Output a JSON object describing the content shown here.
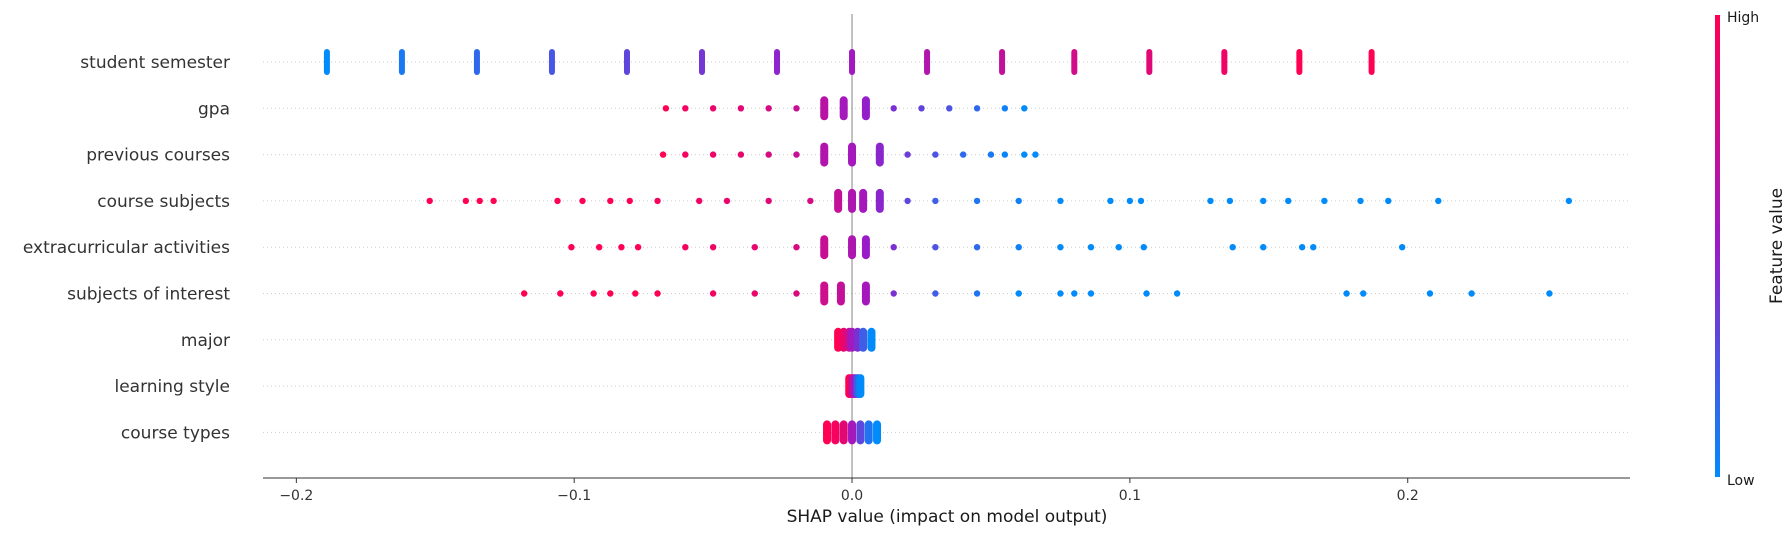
{
  "chart_data": {
    "type": "scatter",
    "title": "",
    "xlabel": "SHAP value (impact on model output)",
    "xlim": [
      -0.212,
      0.28
    ],
    "x_ticks": [
      -0.2,
      -0.1,
      0.0,
      0.1,
      0.2
    ],
    "x_tick_labels": [
      "−0.2",
      "−0.1",
      "0.0",
      "0.1",
      "0.2"
    ],
    "features": [
      "student semester",
      "gpa",
      "previous courses",
      "course subjects",
      "extracurricular activities",
      "subjects of interest",
      "major",
      "learning style",
      "course types"
    ],
    "colorbar": {
      "title": "Feature value",
      "high_label": "High",
      "low_label": "Low"
    },
    "colors": {
      "low": "#008bfb",
      "high": "#ff0052",
      "mid": "#9a1bc8",
      "axis": "#333333",
      "zero_line": "#999999",
      "row_line": "#cccccc"
    },
    "grid": false,
    "series": [
      {
        "feature": "student semester",
        "points": [
          [
            -0.189,
            0.0
          ],
          [
            -0.162,
            0.08
          ],
          [
            -0.135,
            0.15
          ],
          [
            -0.108,
            0.23
          ],
          [
            -0.081,
            0.31
          ],
          [
            -0.054,
            0.38
          ],
          [
            -0.027,
            0.46
          ],
          [
            0.0,
            0.54
          ],
          [
            0.027,
            0.62
          ],
          [
            0.054,
            0.69
          ],
          [
            0.08,
            0.77
          ],
          [
            0.107,
            0.85
          ],
          [
            0.134,
            0.92
          ],
          [
            0.161,
            1.0
          ],
          [
            0.187,
            1.0
          ]
        ]
      },
      {
        "feature": "gpa",
        "points": [
          [
            -0.067,
            1.0
          ],
          [
            -0.06,
            0.95
          ],
          [
            -0.05,
            0.9
          ],
          [
            -0.04,
            0.85
          ],
          [
            -0.03,
            0.8
          ],
          [
            -0.02,
            0.72
          ],
          [
            -0.01,
            0.65
          ],
          [
            -0.003,
            0.55
          ],
          [
            0.005,
            0.48
          ],
          [
            0.015,
            0.4
          ],
          [
            0.025,
            0.32
          ],
          [
            0.035,
            0.25
          ],
          [
            0.045,
            0.15
          ],
          [
            0.055,
            0.05
          ],
          [
            0.062,
            0.0
          ]
        ]
      },
      {
        "feature": "previous courses",
        "points": [
          [
            -0.068,
            1.0
          ],
          [
            -0.06,
            0.95
          ],
          [
            -0.05,
            0.92
          ],
          [
            -0.04,
            0.88
          ],
          [
            -0.03,
            0.8
          ],
          [
            -0.02,
            0.72
          ],
          [
            -0.01,
            0.62
          ],
          [
            0.0,
            0.55
          ],
          [
            0.01,
            0.45
          ],
          [
            0.02,
            0.35
          ],
          [
            0.03,
            0.25
          ],
          [
            0.04,
            0.15
          ],
          [
            0.05,
            0.08
          ],
          [
            0.055,
            0.03
          ],
          [
            0.062,
            0.0
          ],
          [
            0.066,
            0.0
          ]
        ]
      },
      {
        "feature": "course subjects",
        "points": [
          [
            -0.152,
            1.0
          ],
          [
            -0.139,
            1.0
          ],
          [
            -0.134,
            1.0
          ],
          [
            -0.129,
            1.0
          ],
          [
            -0.106,
            1.0
          ],
          [
            -0.097,
            1.0
          ],
          [
            -0.087,
            1.0
          ],
          [
            -0.08,
            1.0
          ],
          [
            -0.07,
            0.95
          ],
          [
            -0.055,
            0.92
          ],
          [
            -0.045,
            0.9
          ],
          [
            -0.03,
            0.85
          ],
          [
            -0.015,
            0.8
          ],
          [
            -0.005,
            0.7
          ],
          [
            0.0,
            0.6
          ],
          [
            0.004,
            0.55
          ],
          [
            0.01,
            0.45
          ],
          [
            0.02,
            0.3
          ],
          [
            0.03,
            0.2
          ],
          [
            0.045,
            0.1
          ],
          [
            0.06,
            0.05
          ],
          [
            0.075,
            0.0
          ],
          [
            0.093,
            0.0
          ],
          [
            0.1,
            0.0
          ],
          [
            0.104,
            0.0
          ],
          [
            0.129,
            0.0
          ],
          [
            0.136,
            0.0
          ],
          [
            0.148,
            0.0
          ],
          [
            0.157,
            0.0
          ],
          [
            0.17,
            0.0
          ],
          [
            0.183,
            0.0
          ],
          [
            0.193,
            0.0
          ],
          [
            0.211,
            0.0
          ],
          [
            0.258,
            0.0
          ]
        ]
      },
      {
        "feature": "extracurricular activities",
        "points": [
          [
            -0.101,
            1.0
          ],
          [
            -0.091,
            1.0
          ],
          [
            -0.083,
            1.0
          ],
          [
            -0.077,
            1.0
          ],
          [
            -0.06,
            0.95
          ],
          [
            -0.05,
            0.92
          ],
          [
            -0.035,
            0.88
          ],
          [
            -0.02,
            0.8
          ],
          [
            -0.01,
            0.72
          ],
          [
            0.0,
            0.6
          ],
          [
            0.005,
            0.5
          ],
          [
            0.015,
            0.4
          ],
          [
            0.03,
            0.25
          ],
          [
            0.045,
            0.15
          ],
          [
            0.06,
            0.05
          ],
          [
            0.075,
            0.0
          ],
          [
            0.086,
            0.0
          ],
          [
            0.096,
            0.0
          ],
          [
            0.105,
            0.0
          ],
          [
            0.137,
            0.0
          ],
          [
            0.148,
            0.0
          ],
          [
            0.162,
            0.0
          ],
          [
            0.166,
            0.0
          ],
          [
            0.198,
            0.0
          ]
        ]
      },
      {
        "feature": "subjects of interest",
        "points": [
          [
            -0.118,
            1.0
          ],
          [
            -0.105,
            1.0
          ],
          [
            -0.093,
            1.0
          ],
          [
            -0.087,
            1.0
          ],
          [
            -0.078,
            1.0
          ],
          [
            -0.07,
            1.0
          ],
          [
            -0.05,
            0.95
          ],
          [
            -0.035,
            0.9
          ],
          [
            -0.02,
            0.82
          ],
          [
            -0.01,
            0.75
          ],
          [
            -0.004,
            0.7
          ],
          [
            0.005,
            0.55
          ],
          [
            0.015,
            0.4
          ],
          [
            0.03,
            0.2
          ],
          [
            0.045,
            0.1
          ],
          [
            0.06,
            0.0
          ],
          [
            0.075,
            0.0
          ],
          [
            0.08,
            0.0
          ],
          [
            0.086,
            0.0
          ],
          [
            0.106,
            0.0
          ],
          [
            0.117,
            0.0
          ],
          [
            0.178,
            0.0
          ],
          [
            0.184,
            0.0
          ],
          [
            0.208,
            0.0
          ],
          [
            0.223,
            0.0
          ],
          [
            0.251,
            0.0
          ]
        ]
      },
      {
        "feature": "major",
        "points": [
          [
            -0.005,
            1.0
          ],
          [
            -0.003,
            0.9
          ],
          [
            -0.001,
            0.7
          ],
          [
            0.0,
            0.55
          ],
          [
            0.002,
            0.4
          ],
          [
            0.004,
            0.2
          ],
          [
            0.007,
            0.0
          ]
        ]
      },
      {
        "feature": "learning style",
        "points": [
          [
            -0.001,
            1.0
          ],
          [
            0.0,
            0.8
          ],
          [
            0.001,
            0.5
          ],
          [
            0.002,
            0.2
          ],
          [
            0.003,
            0.0
          ]
        ]
      },
      {
        "feature": "course types",
        "points": [
          [
            -0.009,
            1.0
          ],
          [
            -0.006,
            0.95
          ],
          [
            -0.003,
            0.85
          ],
          [
            0.0,
            0.55
          ],
          [
            0.003,
            0.3
          ],
          [
            0.006,
            0.1
          ],
          [
            0.009,
            0.0
          ]
        ]
      }
    ]
  }
}
